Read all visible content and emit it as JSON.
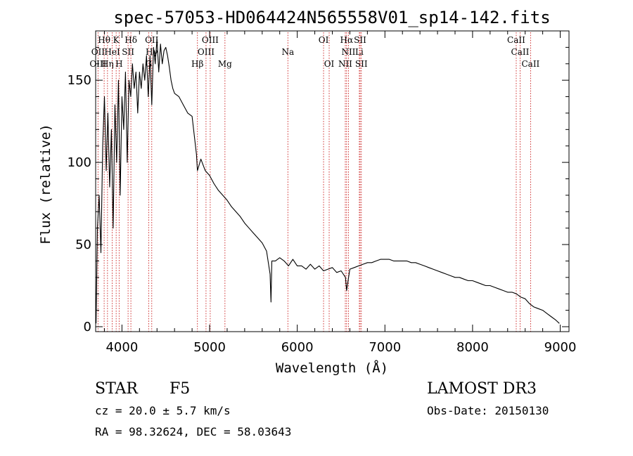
{
  "chart_data": {
    "type": "line",
    "title": "spec-57053-HD064424N565558V01_sp14-142.fits",
    "xlabel": "Wavelength (Å)",
    "ylabel": "Flux (relative)",
    "xlim": [
      3700,
      9100
    ],
    "ylim": [
      -3,
      180
    ],
    "xticks": [
      4000,
      5000,
      6000,
      7000,
      8000,
      9000
    ],
    "yticks": [
      0,
      50,
      100,
      150
    ],
    "grid": false,
    "line_color": "#000000",
    "marker_color": "#cc2222",
    "series": [
      {
        "x": [
          3705,
          3720,
          3740,
          3760,
          3780,
          3800,
          3820,
          3840,
          3860,
          3880,
          3900,
          3920,
          3940,
          3960,
          3980,
          4000,
          4020,
          4040,
          4060,
          4080,
          4100,
          4120,
          4140,
          4160,
          4180,
          4200,
          4220,
          4240,
          4260,
          4280,
          4300,
          4320,
          4340,
          4360,
          4380,
          4400,
          4420,
          4440,
          4460,
          4480,
          4500,
          4520,
          4540,
          4560,
          4580,
          4600,
          4650,
          4700,
          4750,
          4800,
          4850,
          4861,
          4900,
          4950,
          5000,
          5050,
          5100,
          5150,
          5200,
          5250,
          5300,
          5350,
          5400,
          5450,
          5500,
          5550,
          5600,
          5650,
          5690,
          5700,
          5710,
          5750,
          5800,
          5850,
          5900,
          5950,
          6000,
          6050,
          6100,
          6150,
          6200,
          6250,
          6300,
          6350,
          6400,
          6450,
          6500,
          6550,
          6563,
          6600,
          6650,
          6700,
          6750,
          6800,
          6850,
          6900,
          6950,
          7000,
          7050,
          7100,
          7150,
          7200,
          7250,
          7300,
          7350,
          7400,
          7450,
          7500,
          7550,
          7600,
          7650,
          7700,
          7750,
          7800,
          7850,
          7900,
          7950,
          8000,
          8050,
          8100,
          8150,
          8200,
          8250,
          8300,
          8350,
          8400,
          8450,
          8500,
          8550,
          8600,
          8650,
          8700,
          8750,
          8800,
          8850,
          8900,
          8950,
          8990
        ],
        "y": [
          2,
          60,
          80,
          45,
          110,
          140,
          95,
          130,
          85,
          120,
          60,
          135,
          100,
          150,
          80,
          140,
          120,
          155,
          100,
          150,
          140,
          160,
          145,
          155,
          130,
          155,
          145,
          160,
          150,
          165,
          140,
          165,
          135,
          170,
          160,
          175,
          155,
          172,
          160,
          168,
          170,
          165,
          158,
          150,
          145,
          142,
          140,
          135,
          130,
          128,
          105,
          95,
          102,
          95,
          92,
          87,
          83,
          80,
          77,
          73,
          70,
          67,
          63,
          60,
          57,
          54,
          51,
          46,
          32,
          15,
          40,
          40,
          42,
          40,
          37,
          41,
          37,
          37,
          35,
          38,
          35,
          37,
          34,
          35,
          36,
          33,
          34,
          30,
          22,
          35,
          36,
          37,
          38,
          39,
          39,
          40,
          41,
          41,
          41,
          40,
          40,
          40,
          40,
          39,
          39,
          38,
          37,
          36,
          35,
          34,
          33,
          32,
          31,
          30,
          30,
          29,
          28,
          28,
          27,
          26,
          25,
          25,
          24,
          23,
          22,
          21,
          21,
          20,
          18,
          17,
          14,
          12,
          11,
          10,
          8,
          6,
          4,
          2
        ]
      }
    ],
    "lines_row1": [
      {
        "label": "Hθ",
        "x": 3797
      },
      {
        "label": "K",
        "x": 3934
      },
      {
        "label": "Hδ",
        "x": 4102
      },
      {
        "label": "OII",
        "x": 4340
      },
      {
        "label": "OIII",
        "x": 5007
      },
      {
        "label": "OI",
        "x": 6300
      },
      {
        "label": "Hα",
        "x": 6563
      },
      {
        "label": "SII",
        "x": 6717
      },
      {
        "label": "CaII",
        "x": 8498
      }
    ],
    "lines_row2": [
      {
        "label": "OII",
        "x": 3727
      },
      {
        "label": "HeI",
        "x": 3889
      },
      {
        "label": "SII",
        "x": 4070
      },
      {
        "label": "Hγ",
        "x": 4340
      },
      {
        "label": "OIII",
        "x": 4959
      },
      {
        "label": "Na",
        "x": 5893
      },
      {
        "label": "NII",
        "x": 6584
      },
      {
        "label": "Li",
        "x": 6708
      },
      {
        "label": "CaII",
        "x": 8542
      }
    ],
    "lines_row3": [
      {
        "label": "OIII",
        "x": 3727
      },
      {
        "label": "Hη",
        "x": 3835
      },
      {
        "label": "H",
        "x": 3968
      },
      {
        "label": "G",
        "x": 4305
      },
      {
        "label": "Hβ",
        "x": 4861
      },
      {
        "label": "Mg",
        "x": 5175
      },
      {
        "label": "OI",
        "x": 6364
      },
      {
        "label": "NII",
        "x": 6548
      },
      {
        "label": "SII",
        "x": 6731
      },
      {
        "label": "CaII",
        "x": 8662
      }
    ]
  },
  "footer": {
    "object_class": "STAR",
    "subclass": "F5",
    "survey": "LAMOST DR3",
    "cz": "cz = 20.0 ± 5.7 km/s",
    "obs_date": "Obs-Date: 20150130",
    "coords": "RA =  98.32624, DEC =  58.03643"
  }
}
